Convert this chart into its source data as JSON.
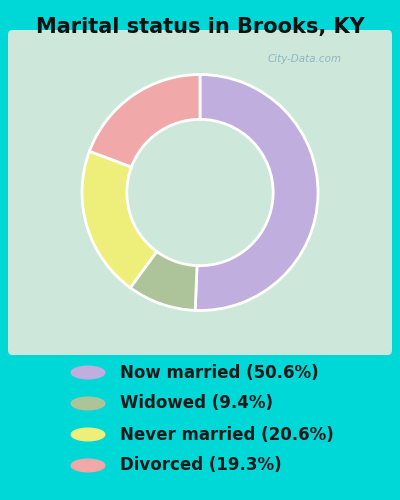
{
  "title": "Marital status in Brooks, KY",
  "slices": [
    50.6,
    9.4,
    20.6,
    19.3
  ],
  "labels": [
    "Now married (50.6%)",
    "Widowed (9.4%)",
    "Never married (20.6%)",
    "Divorced (19.3%)"
  ],
  "colors": [
    "#c0aede",
    "#adc49a",
    "#eeee7a",
    "#f0a8a8"
  ],
  "bg_cyan": "#00d8d8",
  "bg_chart": "#cde8da",
  "watermark": "City-Data.com",
  "startangle": 90,
  "donut_width": 0.38,
  "title_fontsize": 15,
  "legend_fontsize": 12
}
